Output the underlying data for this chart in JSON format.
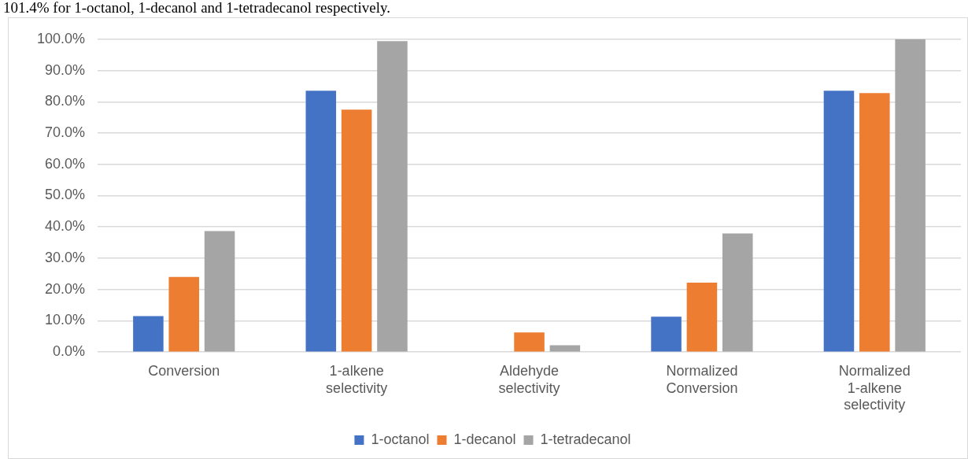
{
  "chart_data": {
    "type": "bar",
    "annotations": [
      "101.4% for 1-octanol, 1-decanol and 1-tetradecanol respectively."
    ],
    "categories": [
      "Conversion",
      "1-alkene selectivity",
      "Aldehyde selectivity",
      "Normalized Conversion",
      "Normalized 1-alkene selectivity"
    ],
    "series": [
      {
        "name": "1-octanol",
        "color": "#4472c4",
        "values": [
          11.5,
          83.5,
          0,
          11.3,
          83.5
        ]
      },
      {
        "name": "1-decanol",
        "color": "#ed7d31",
        "values": [
          24,
          77.5,
          6.3,
          22.2,
          82.8
        ]
      },
      {
        "name": "1-tetradecanol",
        "color": "#a5a5a5",
        "values": [
          38.7,
          99.4,
          2.2,
          37.9,
          100
        ]
      }
    ],
    "ylim": [
      0,
      100
    ],
    "yticks": [
      {
        "value": 0,
        "label": "0.0%"
      },
      {
        "value": 10,
        "label": "10.0%"
      },
      {
        "value": 20,
        "label": "20.0%"
      },
      {
        "value": 30,
        "label": "30.0%"
      },
      {
        "value": 40,
        "label": "40.0%"
      },
      {
        "value": 50,
        "label": "50.0%"
      },
      {
        "value": 60,
        "label": "60.0%"
      },
      {
        "value": 70,
        "label": "70.0%"
      },
      {
        "value": 80,
        "label": "80.0%"
      },
      {
        "value": 90,
        "label": "90.0%"
      },
      {
        "value": 100,
        "label": "100.0%"
      }
    ],
    "grid": "y",
    "legend": "bottom"
  }
}
